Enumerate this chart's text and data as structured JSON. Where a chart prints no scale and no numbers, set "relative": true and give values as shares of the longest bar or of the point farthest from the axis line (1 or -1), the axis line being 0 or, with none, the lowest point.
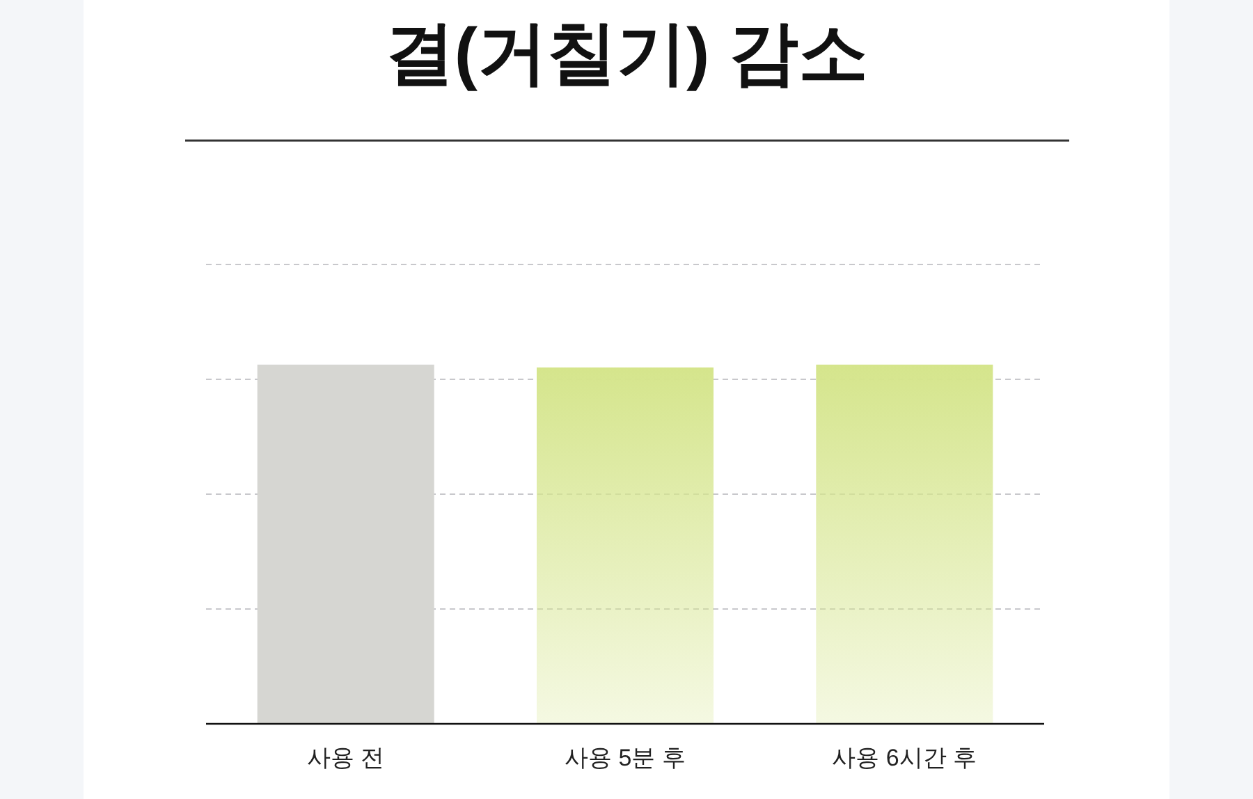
{
  "chart_data": {
    "type": "bar",
    "title": "결(거칠기) 감소",
    "relative": true,
    "grid": "y",
    "categories": [
      "사용 전",
      "사용 5분 후",
      "사용 6시간 후"
    ],
    "values": [
      1,
      0.992,
      1
    ],
    "colors": [
      "#d6d6d2",
      "#d5e58c",
      "#d5e58c"
    ]
  }
}
